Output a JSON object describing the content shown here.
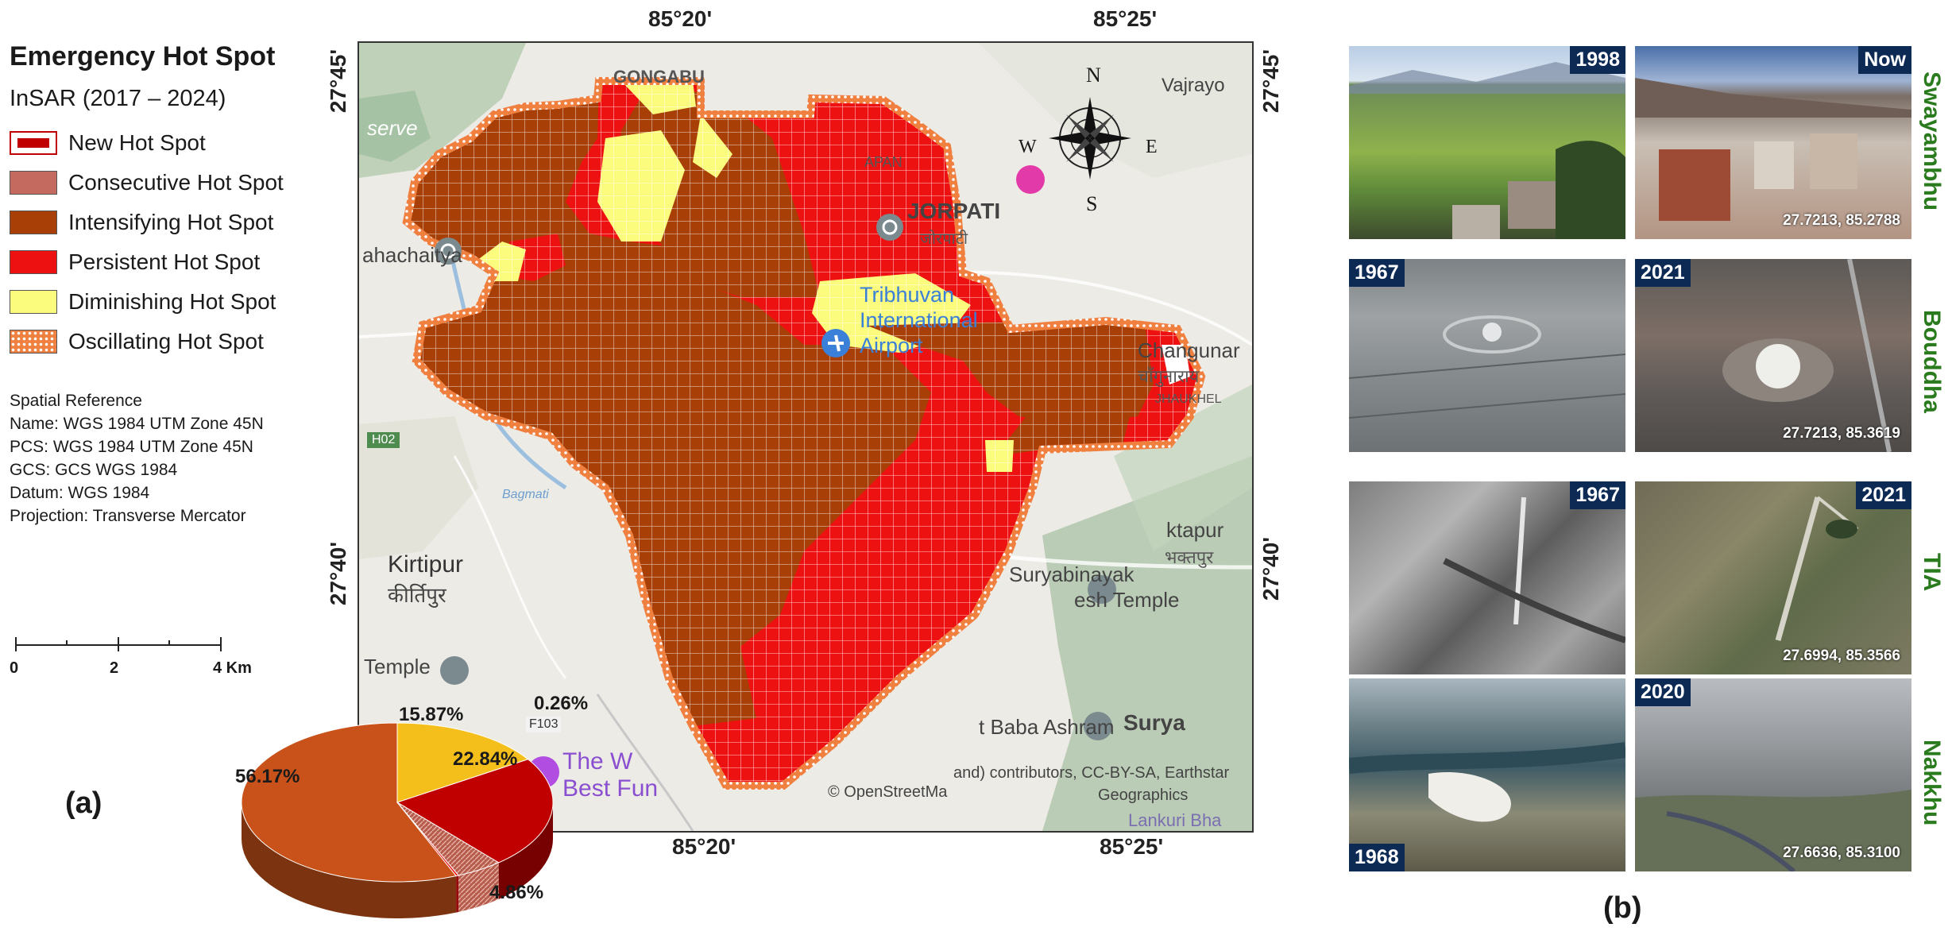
{
  "legend": {
    "title": "Emergency Hot Spot",
    "subtitle": "InSAR (2017 – 2024)",
    "items": [
      {
        "label": "New Hot Spot",
        "color": "#c00000"
      },
      {
        "label": "Consecutive Hot Spot",
        "color": "#c46a5e"
      },
      {
        "label": "Intensifying Hot Spot",
        "color": "#a83f06"
      },
      {
        "label": "Persistent Hot Spot",
        "color": "#ee1111"
      },
      {
        "label": "Diminishing Hot Spot",
        "color": "#fbfb7e"
      },
      {
        "label": "Oscillating Hot Spot",
        "color": "#f08040"
      }
    ]
  },
  "spatial_reference": [
    "Spatial Reference",
    "Name: WGS 1984 UTM Zone 45N",
    "PCS: WGS 1984 UTM Zone 45N",
    "GCS: GCS WGS 1984",
    "Datum: WGS 1984",
    "Projection: Transverse Mercator"
  ],
  "scalebar": {
    "ticks": [
      "0",
      "2",
      "4 Km"
    ]
  },
  "panel_labels": {
    "a": "(a)",
    "b": "(b)"
  },
  "map": {
    "top_coords": [
      "85°20'",
      "85°25'"
    ],
    "bottom_coords": [
      "85°20'",
      "85°25'"
    ],
    "left_coords": [
      "27°45'",
      "27°40'"
    ],
    "right_coords": [
      "27°45'",
      "27°40'"
    ],
    "compass": {
      "n": "N",
      "s": "S",
      "e": "E",
      "w": "W"
    },
    "place_labels": {
      "gongabu": "GONGABU",
      "jorpati": "JORPATI",
      "jorpati_np": "जोरपाटी",
      "apan": "APAN",
      "vajrayo": "Vajrayo",
      "serve": "serve",
      "ahachaitya": "ahachaitya",
      "airport1": "Tribhuvan",
      "airport2": "International",
      "airport3": "Airport",
      "changunar": "Changunar",
      "changunar_np": "चाँगुनाराय",
      "jhaukhel": "JHAUKHEL",
      "road": "H02",
      "bagmati": "Bagmati",
      "ktapur": "ktapur",
      "ktapur_np": "भक्तपुर",
      "kirtipur": "Kirtipur",
      "kirtipur_np": "कीर्तिपुर",
      "suryabinayak": "Suryabinayak",
      "esh_temple": "esh Temple",
      "temple": "Temple",
      "baba_ashram": "t Baba Ashram",
      "surya": "Surya",
      "the_w": "The W",
      "best_fun": "Best Fun",
      "f103": "F103",
      "credit1": "and) contributors, CC-BY-SA, Earthstar",
      "credit2": "Geographics",
      "osm": "© OpenStreetMa",
      "lankuri": "Lankuri Bha"
    }
  },
  "pie_chart": {
    "type": "pie",
    "slices": [
      {
        "label": "56.17%",
        "value": 56.17,
        "color": "#c8521a"
      },
      {
        "label": "15.87%",
        "value": 15.87,
        "color": "#f4bf1a"
      },
      {
        "label": "22.84%",
        "value": 22.84,
        "color": "#c00000"
      },
      {
        "label": "4.86%",
        "value": 4.86,
        "color": "#c46a5e"
      },
      {
        "label": "0.26%",
        "value": 0.26,
        "color": "#ee1111"
      }
    ]
  },
  "photos": {
    "sites": [
      {
        "name": "Swayambhu",
        "left_year": "1998",
        "right_year": "Now",
        "coord": "27.7213, 85.2788"
      },
      {
        "name": "Bouddha",
        "left_year": "1967",
        "right_year": "2021",
        "coord": "27.7213, 85.3619"
      },
      {
        "name": "TIA",
        "left_year": "1967",
        "right_year": "2021",
        "coord": "27.6994, 85.3566"
      },
      {
        "name": "Nakkhu",
        "left_year": "1968",
        "right_year": "2020",
        "coord": "27.6636, 85.3100"
      }
    ]
  }
}
